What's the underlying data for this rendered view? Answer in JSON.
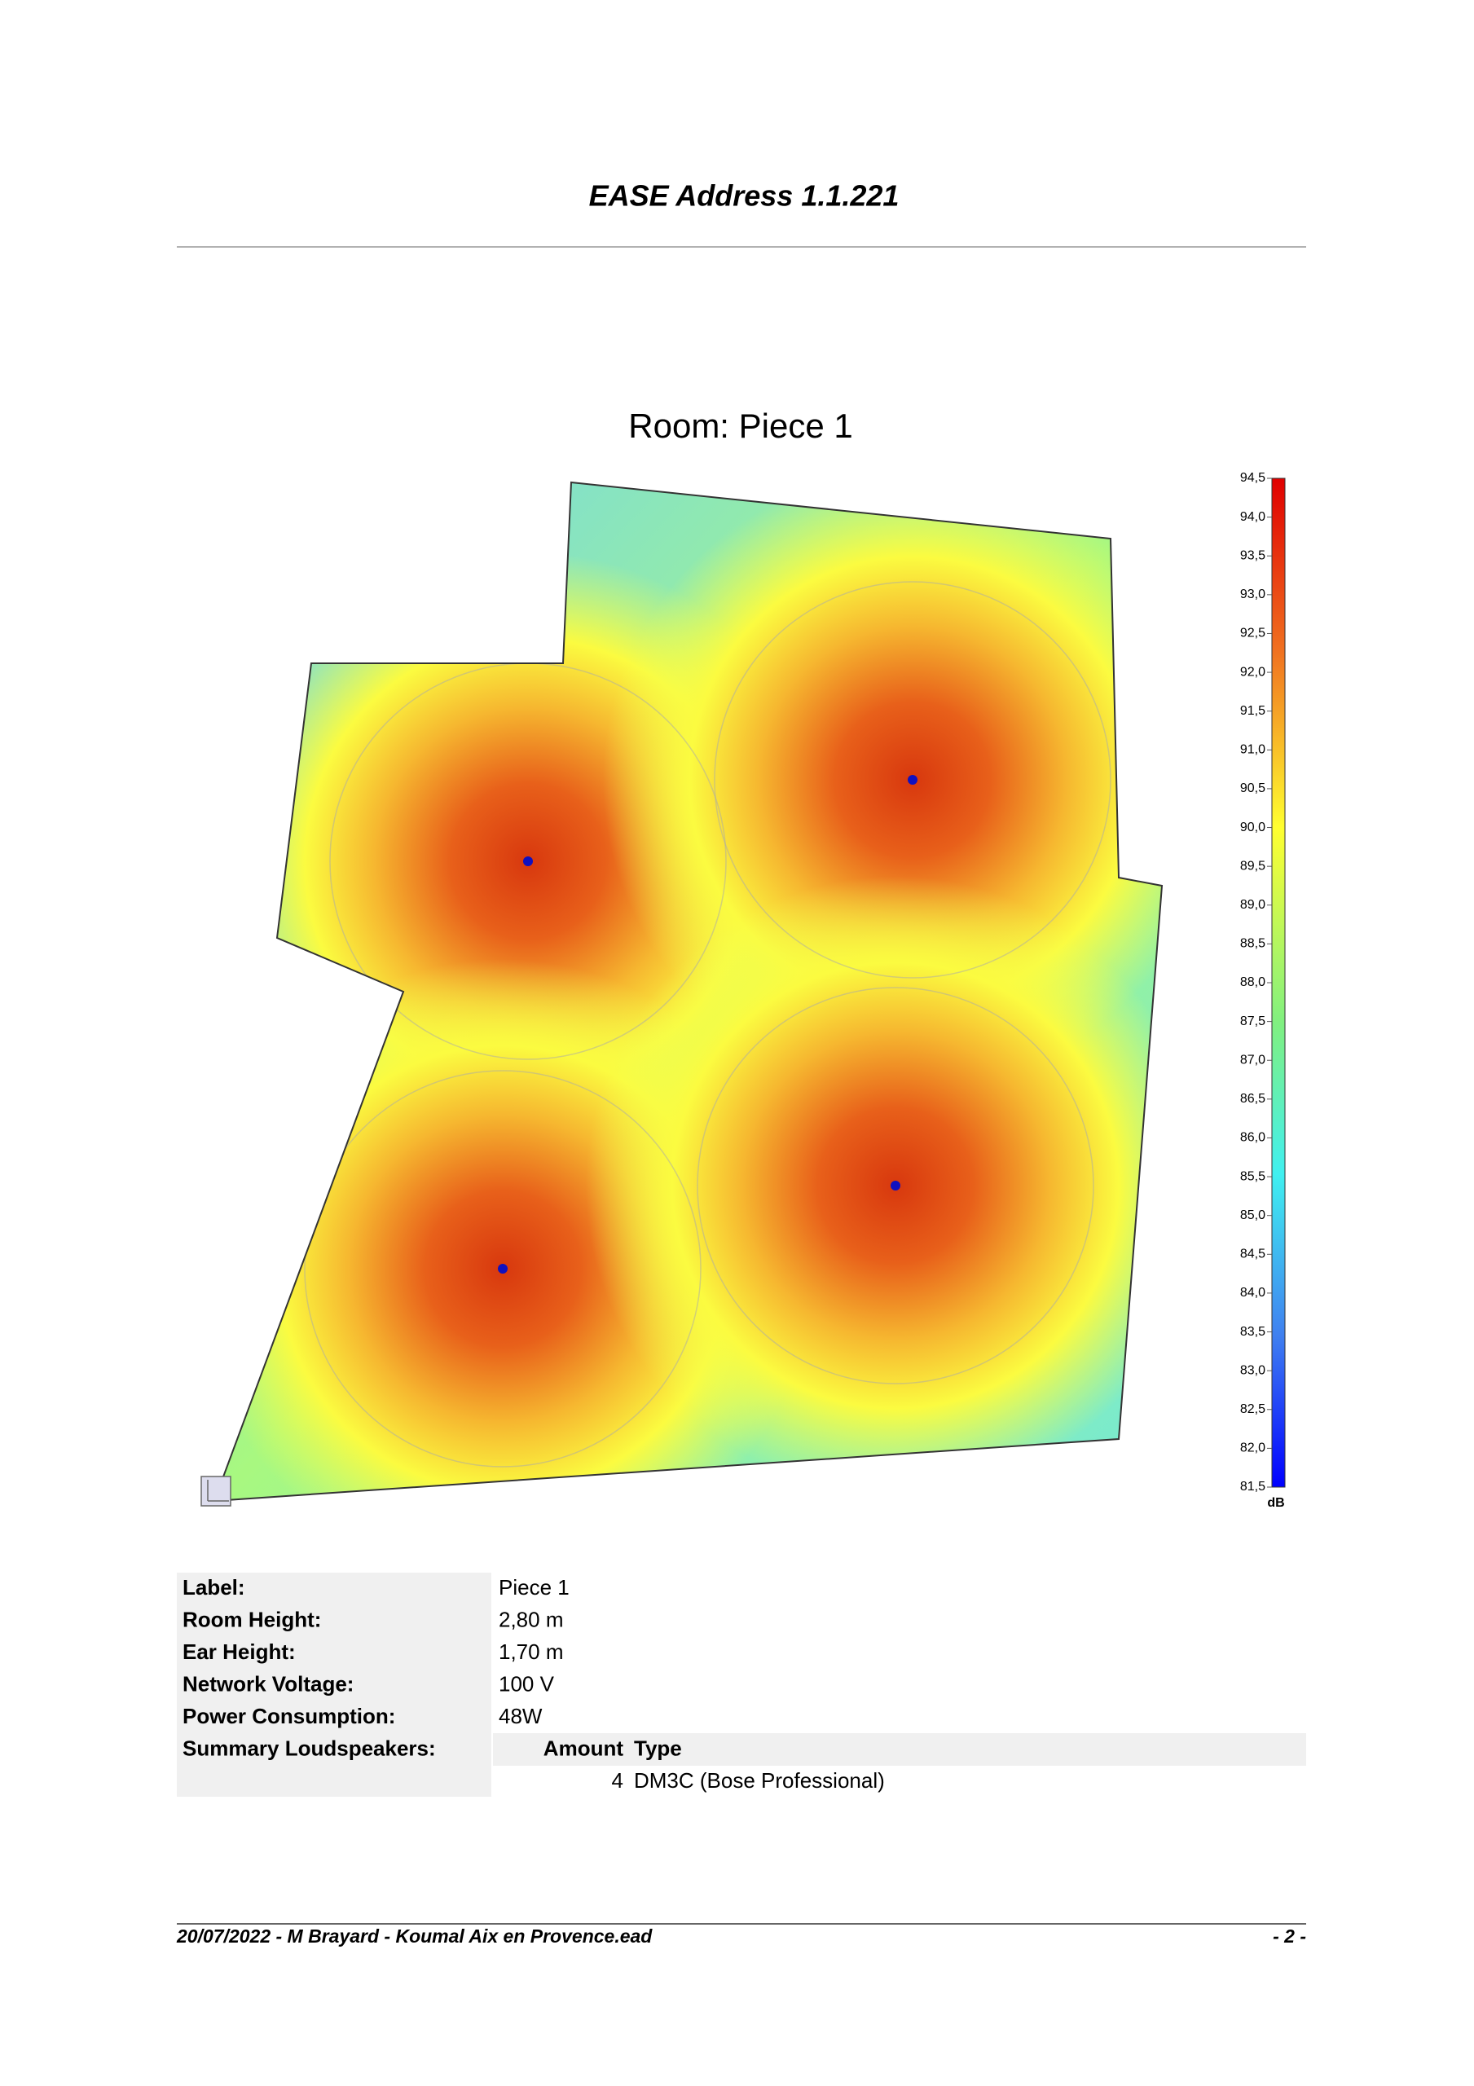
{
  "header": {
    "title": "EASE Address 1.1.221"
  },
  "room": {
    "title": "Room: Piece 1",
    "scale": {
      "ticks": [
        "94,5",
        "94,0",
        "93,5",
        "93,0",
        "92,5",
        "92,0",
        "91,5",
        "91,0",
        "90,5",
        "90,0",
        "89,5",
        "89,0",
        "88,5",
        "88,0",
        "87,5",
        "87,0",
        "86,5",
        "86,0",
        "85,5",
        "85,0",
        "84,5",
        "84,0",
        "83,5",
        "83,0",
        "82,5",
        "82,0",
        "81,5"
      ],
      "unit": "dB"
    }
  },
  "details": {
    "rows": [
      {
        "label": "Label:",
        "value": "Piece 1"
      },
      {
        "label": "Room Height:",
        "value": "2,80 m"
      },
      {
        "label": "Ear Height:",
        "value": "1,70 m"
      },
      {
        "label": "Network Voltage:",
        "value": "100 V"
      },
      {
        "label": "Power Consumption:",
        "value": "48W"
      }
    ],
    "loudspeakers": {
      "label": "Summary Loudspeakers:",
      "columns": [
        "Amount",
        "Type"
      ],
      "rows": [
        [
          4,
          "DM3C (Bose Professional)"
        ]
      ]
    }
  },
  "footer": {
    "left": "20/07/2022 - M Brayard - Koumal Aix en Provence.ead",
    "right": "- 2 -"
  }
}
